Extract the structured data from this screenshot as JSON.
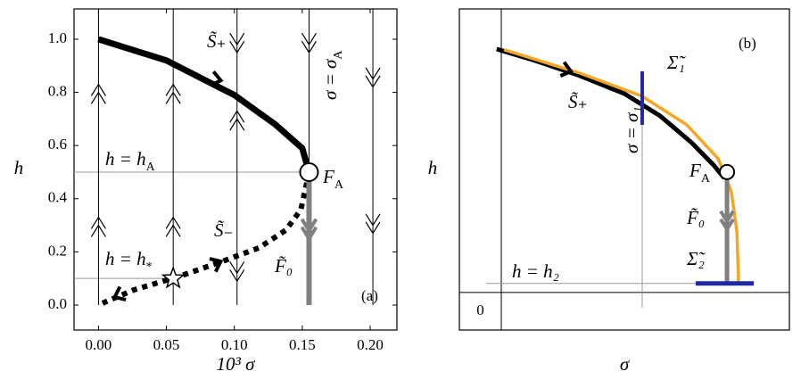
{
  "chart_data": [
    {
      "type": "line",
      "xlabel": "10³ σ",
      "ylabel": "h",
      "xlim": [
        -0.018,
        0.2197
      ],
      "ylim": [
        -0.094,
        1.114
      ],
      "xticks": [
        {
          "value": 0,
          "label": "0.00"
        },
        {
          "value": 0.05,
          "label": "0.05"
        },
        {
          "value": 0.1,
          "label": "0.10"
        },
        {
          "value": 0.15,
          "label": "0.15"
        },
        {
          "value": 0.2,
          "label": "0.20"
        }
      ],
      "yticks": [
        {
          "value": 0,
          "label": "0.0"
        },
        {
          "value": 0.2,
          "label": "0.2"
        },
        {
          "value": 0.4,
          "label": "0.4"
        },
        {
          "value": 0.6,
          "label": "0.6"
        },
        {
          "value": 0.8,
          "label": "0.8"
        },
        {
          "value": 1,
          "label": "1.0"
        }
      ],
      "series": [
        {
          "color": "#000000",
          "style": "solid",
          "width": 7,
          "x": [
            0,
            0.05,
            0.1,
            0.13,
            0.15,
            0.155
          ],
          "values": [
            1.0,
            0.92,
            0.79,
            0.68,
            0.59,
            0.5
          ]
        },
        {
          "color": "#000000",
          "style": "dotted",
          "width": 6,
          "x": [
            0.155,
            0.149,
            0.138,
            0.118,
            0.091,
            0.059,
            0.026,
            0.003
          ],
          "values": [
            0.5,
            0.359,
            0.282,
            0.215,
            0.164,
            0.107,
            0.057,
            0.007
          ]
        },
        {
          "color": "#808080",
          "style": "solid",
          "width": 6,
          "x": [
            0.155,
            0.155
          ],
          "values": [
            0.47,
            0
          ]
        }
      ],
      "hlines": [
        {
          "y": 0.5,
          "x": [
            -0.018,
            0.155
          ]
        },
        {
          "y": 0.1,
          "x": [
            -0.018,
            0.055
          ]
        }
      ],
      "fibers": [
        0,
        0.055,
        0.102,
        0.155,
        0.202
      ],
      "star": {
        "x": 0.055,
        "y": 0.1
      },
      "point": {
        "x": 0.155,
        "y": 0.5
      },
      "annotations": [
        {
          "text": "S̃₊"
        },
        {
          "text": "S̃₋"
        },
        {
          "text": "F̃₀"
        },
        {
          "text": "F",
          "sub": "A"
        },
        {
          "text": "σ = σ",
          "sub": "A"
        },
        {
          "text": "h = h",
          "sub": "A"
        },
        {
          "text": "h = h",
          "sub": "*"
        },
        {
          "text": "(a)"
        }
      ]
    },
    {
      "type": "line",
      "xlabel": "σ",
      "ylabel": "h",
      "origin_label": "0",
      "xlim": [
        -0.127,
        0.873
      ],
      "ylim": [
        -0.117,
        0.883
      ],
      "series": [
        {
          "color": "#000000",
          "style": "solid",
          "width": 5,
          "x": [
            -0.014,
            0.103,
            0.238,
            0.373,
            0.481,
            0.576,
            0.643,
            0.676
          ],
          "values": [
            0.758,
            0.722,
            0.675,
            0.619,
            0.55,
            0.467,
            0.397,
            0.356
          ]
        },
        {
          "color": "#f5a623",
          "style": "solid",
          "width": 3.5,
          "x": [
            0.008,
            0.238,
            0.427,
            0.562,
            0.657,
            0.697,
            0.714,
            0.719
          ],
          "values": [
            0.756,
            0.683,
            0.611,
            0.522,
            0.417,
            0.314,
            0.189,
            0.028
          ]
        },
        {
          "color": "#808080",
          "style": "solid",
          "width": 5,
          "x": [
            0.684,
            0.684
          ],
          "values": [
            0.35,
            0.028
          ]
        },
        {
          "color": "#1f2aa6",
          "style": "solid",
          "width": 4,
          "x": [
            0.427,
            0.427
          ],
          "values": [
            0.689,
            0.522
          ]
        },
        {
          "color": "#1f2aa6",
          "style": "solid",
          "width": 5,
          "x": [
            0.589,
            0.765
          ],
          "values": [
            0.028,
            0.028
          ]
        }
      ],
      "hlines": [
        {
          "y": 0.028,
          "x": [
            -0.046,
            0.589
          ]
        }
      ],
      "vlines": [
        {
          "x": 0.427,
          "y": [
            -0.047,
            0.522
          ]
        }
      ],
      "point": {
        "x": 0.684,
        "y": 0.375
      },
      "annotations": [
        {
          "text": "S̃₊"
        },
        {
          "text": "Σ̃₁"
        },
        {
          "text": "σ = σ₁"
        },
        {
          "text": "F",
          "sub": "A"
        },
        {
          "text": "F̃₀"
        },
        {
          "text": "Σ̃₂"
        },
        {
          "text": "h = h₂"
        },
        {
          "text": "(b)"
        }
      ]
    }
  ]
}
